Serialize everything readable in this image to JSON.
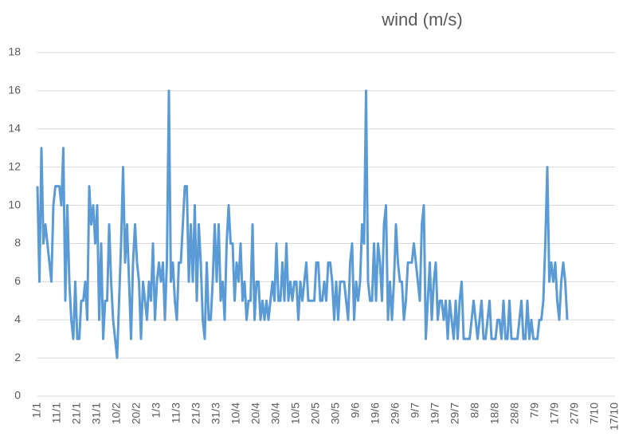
{
  "chart_data": {
    "type": "line",
    "title": "wind  (m/s)",
    "categories": [
      "1/1",
      null,
      null,
      null,
      null,
      null,
      null,
      null,
      null,
      null,
      "11/1",
      null,
      null,
      null,
      null,
      null,
      null,
      null,
      null,
      null,
      "21/1",
      null,
      null,
      null,
      null,
      null,
      null,
      null,
      null,
      null,
      "31/1",
      null,
      null,
      null,
      null,
      null,
      null,
      null,
      null,
      null,
      "10/2",
      null,
      null,
      null,
      null,
      null,
      null,
      null,
      null,
      null,
      "20/2",
      null,
      null,
      null,
      null,
      null,
      null,
      null,
      null,
      null,
      "1/3",
      null,
      null,
      null,
      null,
      null,
      null,
      null,
      null,
      null,
      "11/3",
      null,
      null,
      null,
      null,
      null,
      null,
      null,
      null,
      null,
      "21/3",
      null,
      null,
      null,
      null,
      null,
      null,
      null,
      null,
      null,
      "31/3",
      null,
      null,
      null,
      null,
      null,
      null,
      null,
      null,
      null,
      "10/4",
      null,
      null,
      null,
      null,
      null,
      null,
      null,
      null,
      null,
      "20/4",
      null,
      null,
      null,
      null,
      null,
      null,
      null,
      null,
      null,
      "30/4",
      null,
      null,
      null,
      null,
      null,
      null,
      null,
      null,
      null,
      "10/5",
      null,
      null,
      null,
      null,
      null,
      null,
      null,
      null,
      null,
      "20/5",
      null,
      null,
      null,
      null,
      null,
      null,
      null,
      null,
      null,
      "30/5",
      null,
      null,
      null,
      null,
      null,
      null,
      null,
      null,
      null,
      "9/6",
      null,
      null,
      null,
      null,
      null,
      null,
      null,
      null,
      null,
      "19/6",
      null,
      null,
      null,
      null,
      null,
      null,
      null,
      null,
      null,
      "29/6",
      null,
      null,
      null,
      null,
      null,
      null,
      null,
      null,
      null,
      "9/7",
      null,
      null,
      null,
      null,
      null,
      null,
      null,
      null,
      null,
      "19/7",
      null,
      null,
      null,
      null,
      null,
      null,
      null,
      null,
      null,
      "29/7",
      null,
      null,
      null,
      null,
      null,
      null,
      null,
      null,
      null,
      "8/8",
      null,
      null,
      null,
      null,
      null,
      null,
      null,
      null,
      null,
      "18/8",
      null,
      null,
      null,
      null,
      null,
      null,
      null,
      null,
      null,
      "28/8",
      null,
      null,
      null,
      null,
      null,
      null,
      null,
      null,
      null,
      "7/9",
      null,
      null,
      null,
      null,
      null,
      null,
      null,
      null,
      null,
      "17/9",
      null,
      null,
      null,
      null,
      null,
      null,
      null,
      null,
      null,
      "27/9",
      null,
      null,
      null,
      null,
      null,
      null,
      null,
      null,
      null,
      "7/10",
      null,
      null,
      null,
      null,
      null,
      null,
      null,
      null,
      null,
      "17/10"
    ],
    "values": [
      11,
      6,
      13,
      8,
      9,
      8,
      7,
      6,
      10,
      11,
      11,
      11,
      10,
      13,
      5,
      10,
      6,
      4,
      3,
      6,
      3,
      3,
      5,
      5,
      6,
      4,
      11,
      9,
      10,
      8,
      10,
      4,
      8,
      3,
      5,
      5,
      9,
      6,
      4,
      3,
      2,
      5,
      8,
      12,
      7,
      9,
      6,
      3,
      7,
      9,
      7,
      6,
      3,
      6,
      5,
      4,
      6,
      5,
      8,
      4,
      6,
      7,
      6,
      7,
      4,
      7,
      16,
      6,
      7,
      5,
      4,
      7,
      7,
      9,
      11,
      11,
      6,
      9,
      6,
      10,
      5,
      9,
      7,
      4,
      3,
      7,
      4,
      4,
      6,
      9,
      6,
      9,
      5,
      6,
      4,
      8,
      10,
      8,
      8,
      5,
      7,
      6,
      8,
      5,
      6,
      4,
      5,
      5,
      9,
      4,
      6,
      6,
      4,
      5,
      4,
      5,
      4,
      5,
      6,
      5,
      8,
      5,
      5,
      7,
      5,
      8,
      5,
      6,
      5,
      6,
      6,
      4,
      6,
      5,
      6,
      7,
      5,
      5,
      5,
      5,
      7,
      7,
      5,
      5,
      6,
      5,
      7,
      7,
      6,
      4,
      6,
      4,
      6,
      6,
      6,
      5,
      4,
      7,
      8,
      4,
      6,
      5,
      6,
      9,
      8,
      16,
      6,
      5,
      5,
      8,
      5,
      8,
      7,
      5,
      9,
      10,
      4,
      6,
      4,
      6,
      9,
      7,
      6,
      6,
      4,
      5,
      7,
      7,
      7,
      8,
      7,
      6,
      5,
      9,
      10,
      3,
      5,
      7,
      4,
      6,
      7,
      4,
      5,
      5,
      4,
      5,
      3,
      5,
      4,
      3,
      5,
      3,
      5,
      6,
      3,
      3,
      3,
      3,
      4,
      5,
      4,
      3,
      4,
      5,
      3,
      3,
      4,
      5,
      3,
      3,
      3,
      4,
      4,
      3,
      5,
      3,
      3,
      5,
      3,
      3,
      3,
      3,
      4,
      5,
      3,
      3,
      5,
      3,
      4,
      3,
      3,
      3,
      4,
      4,
      5,
      8,
      12,
      6,
      7,
      6,
      7,
      5,
      4,
      6,
      7,
      6,
      4,
      null,
      null,
      null,
      null,
      null,
      null,
      null,
      null,
      null,
      null,
      null,
      null,
      null,
      null,
      null,
      null,
      null,
      null,
      null,
      null,
      null,
      null,
      null,
      null
    ],
    "color": "#5b9bd5",
    "ylim": [
      0,
      18
    ],
    "yticks": [
      0,
      2,
      4,
      6,
      8,
      10,
      12,
      14,
      16,
      18
    ],
    "grid": true
  }
}
